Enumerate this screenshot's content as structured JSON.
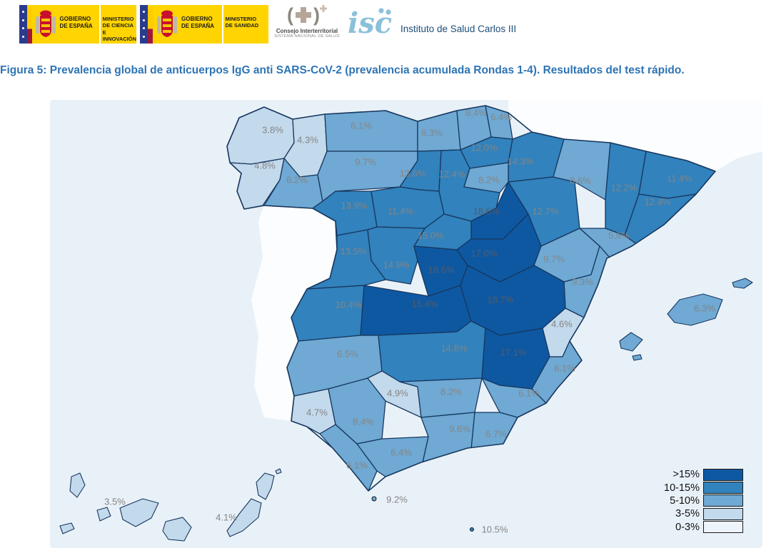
{
  "header": {
    "logo_ciencia": {
      "gobierno": "GOBIERNO\nDE ESPAÑA",
      "ministerio": "MINISTERIO\nDE CIENCIA\nE INNOVACIÓN"
    },
    "logo_sanidad": {
      "gobierno": "GOBIERNO\nDE ESPAÑA",
      "ministerio": "MINISTERIO\nDE SANIDAD"
    },
    "consejo": {
      "line1": "Consejo Interterritorial",
      "line2": "SISTEMA NACIONAL DE SALUD"
    },
    "isciii": {
      "name": "Instituto de Salud Carlos III"
    }
  },
  "title": "Figura 5: Prevalencia global de anticuerpos IgG anti SARS-CoV-2 (prevalencia acumulada Rondas 1-4). Resultados del test rápido.",
  "map": {
    "sea_color": "#e9f1f8",
    "neighbor_color": "#fbfdff",
    "border_color": "#17375e",
    "label_color": "#858585",
    "label_color_dark_band": "#525c6b",
    "class_colors": {
      ">15%": "#0e58a2",
      "10-15%": "#3182bd",
      "5-10%": "#6fa9d4",
      "3-5%": "#c3d9ec",
      "0-3%": "#eef4fb"
    },
    "legend": {
      "items": [
        {
          "label": ">15%",
          "band": ">15%"
        },
        {
          "label": "10-15%",
          "band": "10-15%"
        },
        {
          "label": "5-10%",
          "band": "5-10%"
        },
        {
          "label": "3-5%",
          "band": "3-5%"
        },
        {
          "label": "0-3%",
          "band": "0-3%"
        }
      ]
    }
  },
  "chart_data": {
    "type": "choropleth",
    "title": "Prevalencia global de anticuerpos IgG anti SARS-CoV-2 (prevalencia acumulada Rondas 1-4). Resultados del test rápido.",
    "unit": "%",
    "legend_classes": [
      ">15%",
      "10-15%",
      "5-10%",
      "3-5%",
      "0-3%"
    ],
    "regions": [
      {
        "id": "acoruna",
        "name": "A Coruña",
        "value": 3.8,
        "band": "3-5%"
      },
      {
        "id": "lugo",
        "name": "Lugo",
        "value": 4.3,
        "band": "3-5%"
      },
      {
        "id": "pontevedra",
        "name": "Pontevedra",
        "value": 4.8,
        "band": "3-5%"
      },
      {
        "id": "ourense",
        "name": "Ourense",
        "value": 6.2,
        "band": "5-10%"
      },
      {
        "id": "asturias",
        "name": "Asturias",
        "value": 6.1,
        "band": "5-10%"
      },
      {
        "id": "cantabria",
        "name": "Cantabria",
        "value": 6.3,
        "band": "5-10%"
      },
      {
        "id": "bizkaia",
        "name": "Bizkaia",
        "value": 8.4,
        "band": "5-10%"
      },
      {
        "id": "gipuzkoa",
        "name": "Gipuzkoa",
        "value": 6.4,
        "band": "5-10%"
      },
      {
        "id": "alava",
        "name": "Álava",
        "value": 12.0,
        "band": "10-15%"
      },
      {
        "id": "navarra",
        "name": "Navarra",
        "value": 14.3,
        "band": "10-15%"
      },
      {
        "id": "larioja",
        "name": "La Rioja",
        "value": 8.2,
        "band": "5-10%"
      },
      {
        "id": "leon",
        "name": "León",
        "value": 9.7,
        "band": "5-10%"
      },
      {
        "id": "palencia",
        "name": "Palencia",
        "value": 13.6,
        "band": "10-15%"
      },
      {
        "id": "burgos",
        "name": "Burgos",
        "value": 12.4,
        "band": "10-15%"
      },
      {
        "id": "zamora",
        "name": "Zamora",
        "value": 13.9,
        "band": "10-15%"
      },
      {
        "id": "valladolid",
        "name": "Valladolid",
        "value": 11.4,
        "band": "10-15%"
      },
      {
        "id": "soria",
        "name": "Soria",
        "value": 18.6,
        "band": ">15%"
      },
      {
        "id": "segovia",
        "name": "Segovia",
        "value": 15.0,
        "band": "10-15%"
      },
      {
        "id": "salamanca",
        "name": "Salamanca",
        "value": 13.5,
        "band": "10-15%"
      },
      {
        "id": "avila",
        "name": "Ávila",
        "value": 14.9,
        "band": "10-15%"
      },
      {
        "id": "madrid",
        "name": "Madrid",
        "value": 18.6,
        "band": ">15%"
      },
      {
        "id": "guadalajara",
        "name": "Guadalajara",
        "value": 17.0,
        "band": ">15%"
      },
      {
        "id": "zaragoza",
        "name": "Zaragoza",
        "value": 12.7,
        "band": "10-15%"
      },
      {
        "id": "huesca",
        "name": "Huesca",
        "value": 8.6,
        "band": "5-10%"
      },
      {
        "id": "lleida",
        "name": "Lleida",
        "value": 12.2,
        "band": "10-15%"
      },
      {
        "id": "girona",
        "name": "Girona",
        "value": 11.4,
        "band": "10-15%"
      },
      {
        "id": "barcelona",
        "name": "Barcelona",
        "value": 12.4,
        "band": "10-15%"
      },
      {
        "id": "tarragona",
        "name": "Tarragona",
        "value": 5.6,
        "band": "5-10%"
      },
      {
        "id": "teruel",
        "name": "Teruel",
        "value": 9.7,
        "band": "5-10%"
      },
      {
        "id": "castellon",
        "name": "Castellón",
        "value": 9.3,
        "band": "5-10%"
      },
      {
        "id": "caceres",
        "name": "Cáceres",
        "value": 10.4,
        "band": "10-15%"
      },
      {
        "id": "toledo",
        "name": "Toledo",
        "value": 15.4,
        "band": ">15%"
      },
      {
        "id": "cuenca",
        "name": "Cuenca",
        "value": 18.7,
        "band": ">15%"
      },
      {
        "id": "valencia",
        "name": "Valencia",
        "value": 4.6,
        "band": "3-5%"
      },
      {
        "id": "badajoz",
        "name": "Badajoz",
        "value": 6.5,
        "band": "5-10%"
      },
      {
        "id": "ciudadreal",
        "name": "Ciudad Real",
        "value": 14.8,
        "band": "10-15%"
      },
      {
        "id": "albacete",
        "name": "Albacete",
        "value": 17.1,
        "band": ">15%"
      },
      {
        "id": "alicante",
        "name": "Alicante",
        "value": 6.1,
        "band": "5-10%"
      },
      {
        "id": "murcia",
        "name": "Murcia",
        "value": 6.1,
        "band": "5-10%"
      },
      {
        "id": "huelva",
        "name": "Huelva",
        "value": 4.7,
        "band": "3-5%"
      },
      {
        "id": "sevilla",
        "name": "Sevilla",
        "value": 8.4,
        "band": "5-10%"
      },
      {
        "id": "cordoba",
        "name": "Córdoba",
        "value": 4.9,
        "band": "3-5%"
      },
      {
        "id": "jaen",
        "name": "Jaén",
        "value": 8.2,
        "band": "5-10%"
      },
      {
        "id": "granada",
        "name": "Granada",
        "value": 9.6,
        "band": "5-10%"
      },
      {
        "id": "almeria",
        "name": "Almería",
        "value": 6.7,
        "band": "5-10%"
      },
      {
        "id": "malaga",
        "name": "Málaga",
        "value": 6.4,
        "band": "5-10%"
      },
      {
        "id": "cadiz",
        "name": "Cádiz",
        "value": 6.1,
        "band": "5-10%"
      },
      {
        "id": "balears",
        "name": "Illes Balears",
        "value": 6.3,
        "band": "5-10%"
      },
      {
        "id": "tenerife",
        "name": "Santa Cruz de Tenerife",
        "value": 3.5,
        "band": "3-5%"
      },
      {
        "id": "laspalmas",
        "name": "Las Palmas",
        "value": 4.1,
        "band": "3-5%"
      },
      {
        "id": "ceuta",
        "name": "Ceuta",
        "value": 9.2,
        "band": "5-10%"
      },
      {
        "id": "melilla",
        "name": "Melilla",
        "value": 10.5,
        "band": "10-15%"
      }
    ]
  }
}
